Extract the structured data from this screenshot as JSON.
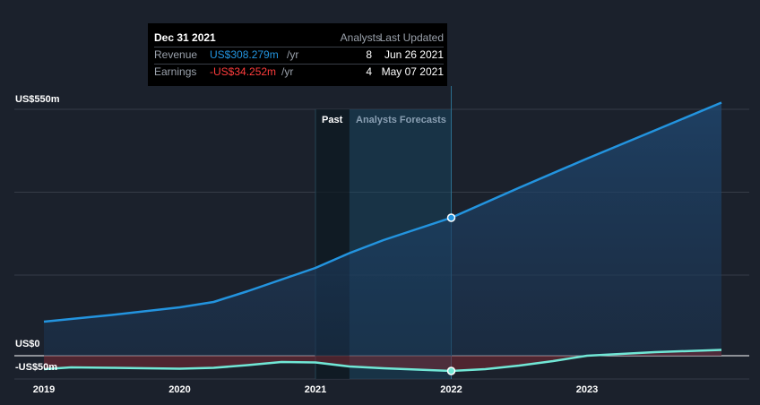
{
  "tooltip": {
    "date": "Dec 31 2021",
    "col_analysts": "Analysts",
    "col_updated": "Last Updated",
    "rows": [
      {
        "name": "Revenue",
        "value": "US$308.279m",
        "unit": "/yr",
        "analysts": "8",
        "updated": "Jun 26 2021",
        "color": "#2394df"
      },
      {
        "name": "Earnings",
        "value": "-US$34.252m",
        "unit": "/yr",
        "analysts": "4",
        "updated": "May 07 2021",
        "color": "#ff3c3c"
      }
    ]
  },
  "regions": {
    "past": "Past",
    "forecast": "Analysts Forecasts"
  },
  "colors": {
    "revenue": "#2394df",
    "earnings": "#71e7d6",
    "background": "#1b212c",
    "highlight": "#ffffff"
  },
  "chart_data": {
    "type": "line",
    "y_tick_labels": [
      "US$550m",
      "US$0",
      "-US$50m"
    ],
    "x_tick_labels": [
      "2019",
      "2020",
      "2021",
      "2022",
      "2023"
    ],
    "ylim": [
      -50,
      550
    ],
    "past_until": 2021.25,
    "highlight_x": 2022.0,
    "series": [
      {
        "name": "Revenue",
        "color": "#2394df",
        "x": [
          2019.0,
          2019.5,
          2020.0,
          2020.25,
          2020.5,
          2020.75,
          2021.0,
          2021.25,
          2021.5,
          2021.75,
          2022.0,
          2022.5,
          2023.0,
          2023.5,
          2023.99
        ],
        "y": [
          76,
          91,
          108,
          120,
          144,
          170,
          196,
          229,
          258,
          283,
          308,
          375,
          440,
          503,
          565
        ]
      },
      {
        "name": "Earnings",
        "color": "#71e7d6",
        "x": [
          2019.0,
          2019.2,
          2019.5,
          2019.75,
          2020.0,
          2020.25,
          2020.5,
          2020.75,
          2021.0,
          2021.25,
          2021.5,
          2021.75,
          2022.0,
          2022.25,
          2022.5,
          2022.75,
          2023.0,
          2023.5,
          2023.99
        ],
        "y": [
          -30,
          -26,
          -27,
          -28,
          -29,
          -27,
          -21,
          -14,
          -15,
          -24,
          -28,
          -31,
          -34,
          -30,
          -22,
          -12,
          0,
          8,
          13
        ]
      }
    ],
    "highlight_points": [
      {
        "series": "Revenue",
        "x": 2022.0,
        "y": 308
      },
      {
        "series": "Earnings",
        "x": 2022.0,
        "y": -34
      }
    ]
  }
}
